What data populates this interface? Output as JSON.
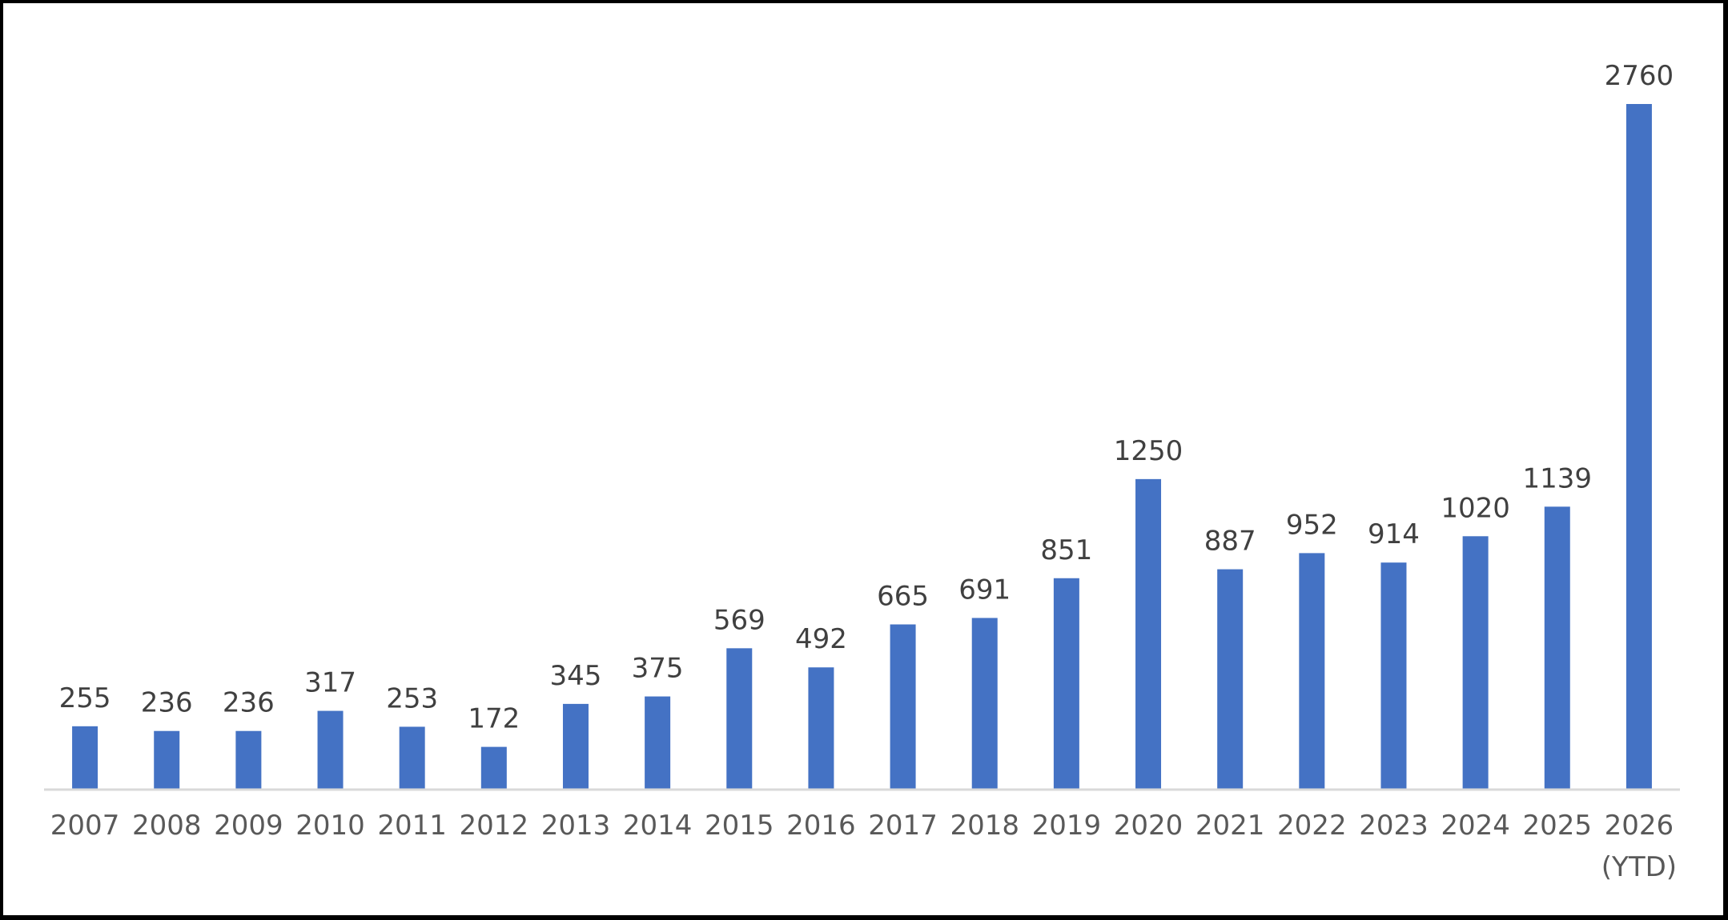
{
  "chart_data": {
    "type": "bar",
    "title": "",
    "xlabel": "",
    "ylabel": "",
    "categories": [
      "2007",
      "2008",
      "2009",
      "2010",
      "2011",
      "2012",
      "2013",
      "2014",
      "2015",
      "2016",
      "2017",
      "2018",
      "2019",
      "2020",
      "2021",
      "2022",
      "2023",
      "2024",
      "2025",
      "2026\n(YTD)"
    ],
    "values": [
      255,
      236,
      236,
      317,
      253,
      172,
      345,
      375,
      569,
      492,
      665,
      691,
      851,
      1250,
      887,
      952,
      914,
      1020,
      1139,
      2760
    ],
    "data_labels": true,
    "ylim": [
      0,
      2760
    ],
    "grid": false,
    "legend": "none",
    "colors": {
      "bar": "#4472C4",
      "axis": "#D9D9D9",
      "data_label": "#404040",
      "tick_label": "#595959",
      "background": "#FFFFFF",
      "border": "#000000"
    }
  }
}
